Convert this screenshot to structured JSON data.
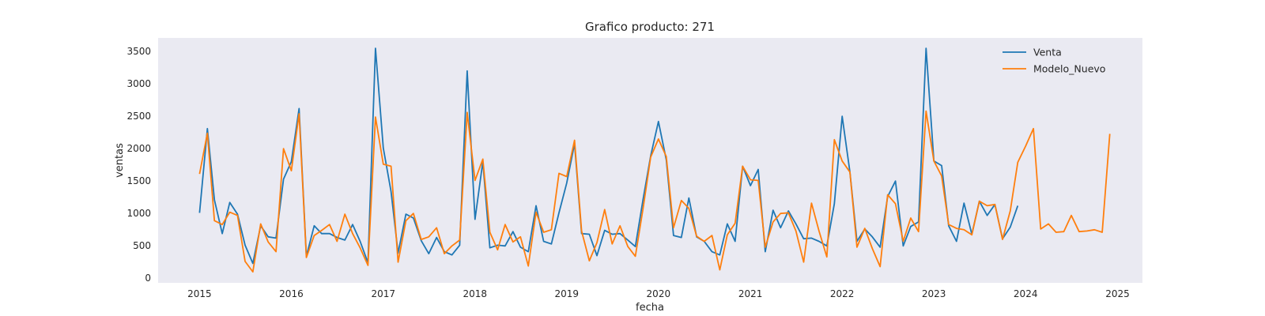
{
  "chart_data": {
    "type": "line",
    "title": "Grafico producto: 271",
    "xlabel": "fecha",
    "ylabel": "ventas",
    "x_ticks": [
      "2015",
      "2016",
      "2017",
      "2018",
      "2019",
      "2020",
      "2021",
      "2022",
      "2023",
      "2024",
      "2025"
    ],
    "y_ticks": [
      0,
      500,
      1000,
      1500,
      2000,
      2500,
      3000,
      3500
    ],
    "ylim": [
      -80,
      3700
    ],
    "xlim": [
      "2014-07-20",
      "2025-04-10"
    ],
    "grid": false,
    "legend_position": "top-right",
    "background": "#eaeaf2",
    "series": [
      {
        "name": "Venta",
        "color": "#1f77b4",
        "start": "2015-01",
        "values": [
          1000,
          2300,
          1200,
          680,
          1160,
          980,
          500,
          220,
          800,
          630,
          610,
          1520,
          1790,
          2610,
          330,
          800,
          680,
          680,
          620,
          580,
          820,
          560,
          230,
          3540,
          2000,
          1330,
          380,
          980,
          920,
          570,
          370,
          620,
          400,
          350,
          500,
          3190,
          900,
          1790,
          460,
          500,
          490,
          710,
          470,
          400,
          1110,
          560,
          520,
          1000,
          1460,
          2070,
          680,
          670,
          340,
          730,
          670,
          680,
          580,
          480,
          1210,
          1880,
          2410,
          1820,
          650,
          620,
          1230,
          630,
          560,
          400,
          350,
          830,
          560,
          1720,
          1420,
          1670,
          400,
          1040,
          770,
          1030,
          830,
          600,
          610,
          560,
          490,
          1140,
          2490,
          1630,
          560,
          750,
          630,
          470,
          1250,
          1490,
          490,
          790,
          860,
          3540,
          1800,
          1730,
          800,
          560,
          1150,
          670,
          1180,
          960,
          1130,
          600,
          780,
          1110
        ]
      },
      {
        "name": "Modelo_Nuevo",
        "color": "#ff7f0e",
        "start": "2015-01",
        "values": [
          1600,
          2230,
          880,
          820,
          1010,
          960,
          250,
          90,
          830,
          550,
          400,
          1990,
          1650,
          2530,
          310,
          650,
          730,
          820,
          560,
          980,
          680,
          460,
          190,
          2480,
          1750,
          1720,
          240,
          880,
          990,
          590,
          630,
          770,
          370,
          490,
          580,
          2550,
          1500,
          1830,
          700,
          430,
          820,
          550,
          630,
          180,
          1010,
          700,
          740,
          1610,
          1560,
          2120,
          720,
          260,
          540,
          1050,
          520,
          800,
          480,
          330,
          1070,
          1860,
          2140,
          1870,
          770,
          1190,
          1070,
          640,
          560,
          650,
          120,
          660,
          840,
          1720,
          1510,
          1500,
          470,
          860,
          990,
          1000,
          720,
          240,
          1150,
          720,
          320,
          2130,
          1800,
          1630,
          470,
          760,
          450,
          170,
          1280,
          1140,
          560,
          920,
          710,
          2570,
          1800,
          1570,
          820,
          760,
          740,
          660,
          1180,
          1110,
          1130,
          590,
          1030,
          1780,
          2030,
          2300,
          750,
          830,
          700,
          710,
          960,
          710,
          720,
          740,
          700,
          2220
        ]
      }
    ]
  }
}
